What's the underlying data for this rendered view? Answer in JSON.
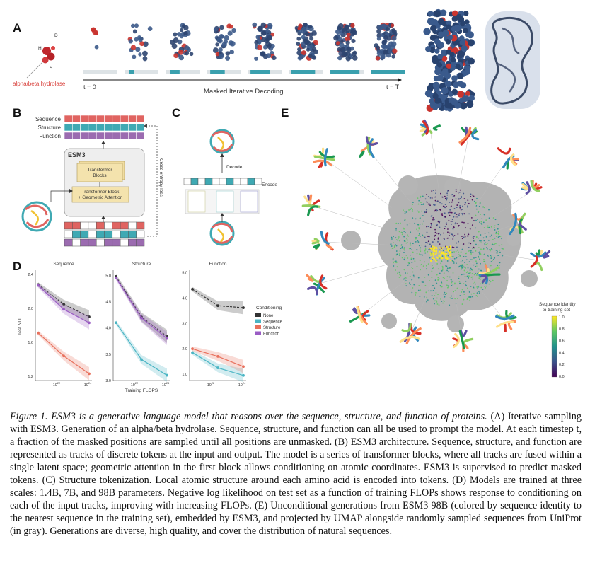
{
  "panels": {
    "a": "A",
    "b": "B",
    "c": "C",
    "d": "D",
    "e": "E"
  },
  "panel_a": {
    "protein_label": "alpha/beta hydrolase",
    "t_start": "t = 0",
    "t_end": "t = T",
    "axis_label": "Masked Iterative Decoding"
  },
  "panel_b": {
    "tracks": [
      "Sequence",
      "Structure",
      "Function"
    ],
    "model_name": "ESM3",
    "block1": "Transformer\nBlocks",
    "block2": "Transformer Block\n+ Geometric Attention",
    "loss_label": "Cross entropy loss",
    "colors": {
      "sequence": "#e06461",
      "structure": "#3fa9b3",
      "function": "#9b6bb0"
    }
  },
  "panel_c": {
    "decode": "Decode",
    "encode": "Encode"
  },
  "chart_data": [
    {
      "type": "line",
      "title": "Sequence",
      "ylabel": "Test NLL",
      "x_ticks": [
        "10^22",
        "10^24"
      ],
      "y_ticks": [
        2.4,
        2.0,
        1.6,
        1.2
      ],
      "ylim": [
        1.15,
        2.45
      ],
      "x": [
        0,
        1,
        2
      ],
      "series": [
        {
          "name": "None",
          "values": [
            2.28,
            2.05,
            1.9
          ]
        },
        {
          "name": "Structure",
          "values": [
            1.71,
            1.44,
            1.23
          ]
        },
        {
          "name": "Function",
          "values": [
            2.27,
            1.99,
            1.83
          ]
        }
      ]
    },
    {
      "type": "line",
      "title": "Structure",
      "xlabel": "Training FLOPS",
      "x_ticks": [
        "10^22",
        "10^24"
      ],
      "y_ticks": [
        5.0,
        4.5,
        4.0,
        3.5,
        3.0
      ],
      "ylim": [
        3.0,
        5.1
      ],
      "x": [
        0,
        1,
        2
      ],
      "series": [
        {
          "name": "None",
          "values": [
            4.98,
            4.21,
            3.84
          ]
        },
        {
          "name": "Sequence",
          "values": [
            4.1,
            3.4,
            3.1
          ]
        },
        {
          "name": "Function",
          "values": [
            4.95,
            4.19,
            3.8
          ]
        }
      ]
    },
    {
      "type": "line",
      "title": "Function",
      "x_ticks": [
        "10^22",
        "10^24"
      ],
      "y_ticks": [
        5.0,
        4.0,
        3.0,
        2.0,
        1.0
      ],
      "ylim": [
        0.75,
        5.1
      ],
      "x": [
        0,
        1,
        2
      ],
      "series": [
        {
          "name": "None",
          "values": [
            4.35,
            3.7,
            3.62
          ]
        },
        {
          "name": "Sequence",
          "values": [
            1.85,
            1.25,
            0.95
          ]
        },
        {
          "name": "Structure",
          "values": [
            2.0,
            1.7,
            1.3
          ]
        }
      ]
    }
  ],
  "legend": {
    "title": "Conditioning",
    "items": [
      {
        "name": "None",
        "color": "#333333"
      },
      {
        "name": "Sequence",
        "color": "#4ab5c4"
      },
      {
        "name": "Structure",
        "color": "#e8705c"
      },
      {
        "name": "Function",
        "color": "#9a5cc4"
      }
    ]
  },
  "panel_e": {
    "colorbar_title": "Sequence identity\nto training set",
    "colorbar_ticks": [
      "1.0",
      "0.8",
      "0.6",
      "0.4",
      "0.2",
      "0.0"
    ]
  },
  "caption": {
    "head": "Figure 1. ESM3 is a generative language model that reasons over the sequence, structure, and function of proteins.",
    "body": " (A) Iterative sampling with ESM3. Generation of an alpha/beta hydrolase. Sequence, structure, and function can all be used to prompt the model. At each timestep t, a fraction of the masked positions are sampled until all positions are unmasked. (B) ESM3 architecture. Sequence, structure, and function are represented as tracks of discrete tokens at the input and output. The model is a series of transformer blocks, where all tracks are fused within a single latent space; geometric attention in the first block allows conditioning on atomic coordinates. ESM3 is supervised to predict masked tokens. (C) Structure tokenization. Local atomic structure around each amino acid is encoded into tokens. (D) Models are trained at three scales: 1.4B, 7B, and 98B parameters. Negative log likelihood on test set as a function of training FLOPs shows response to conditioning on each of the input tracks, improving with increasing FLOPs. (E) Unconditional generations from ESM3 98B (colored by sequence identity to the nearest sequence in the training set), embedded by ESM3, and projected by UMAP alongside randomly sampled sequences from UniProt (in gray). Generations are diverse, high quality, and cover the distribution of natural sequences."
  }
}
